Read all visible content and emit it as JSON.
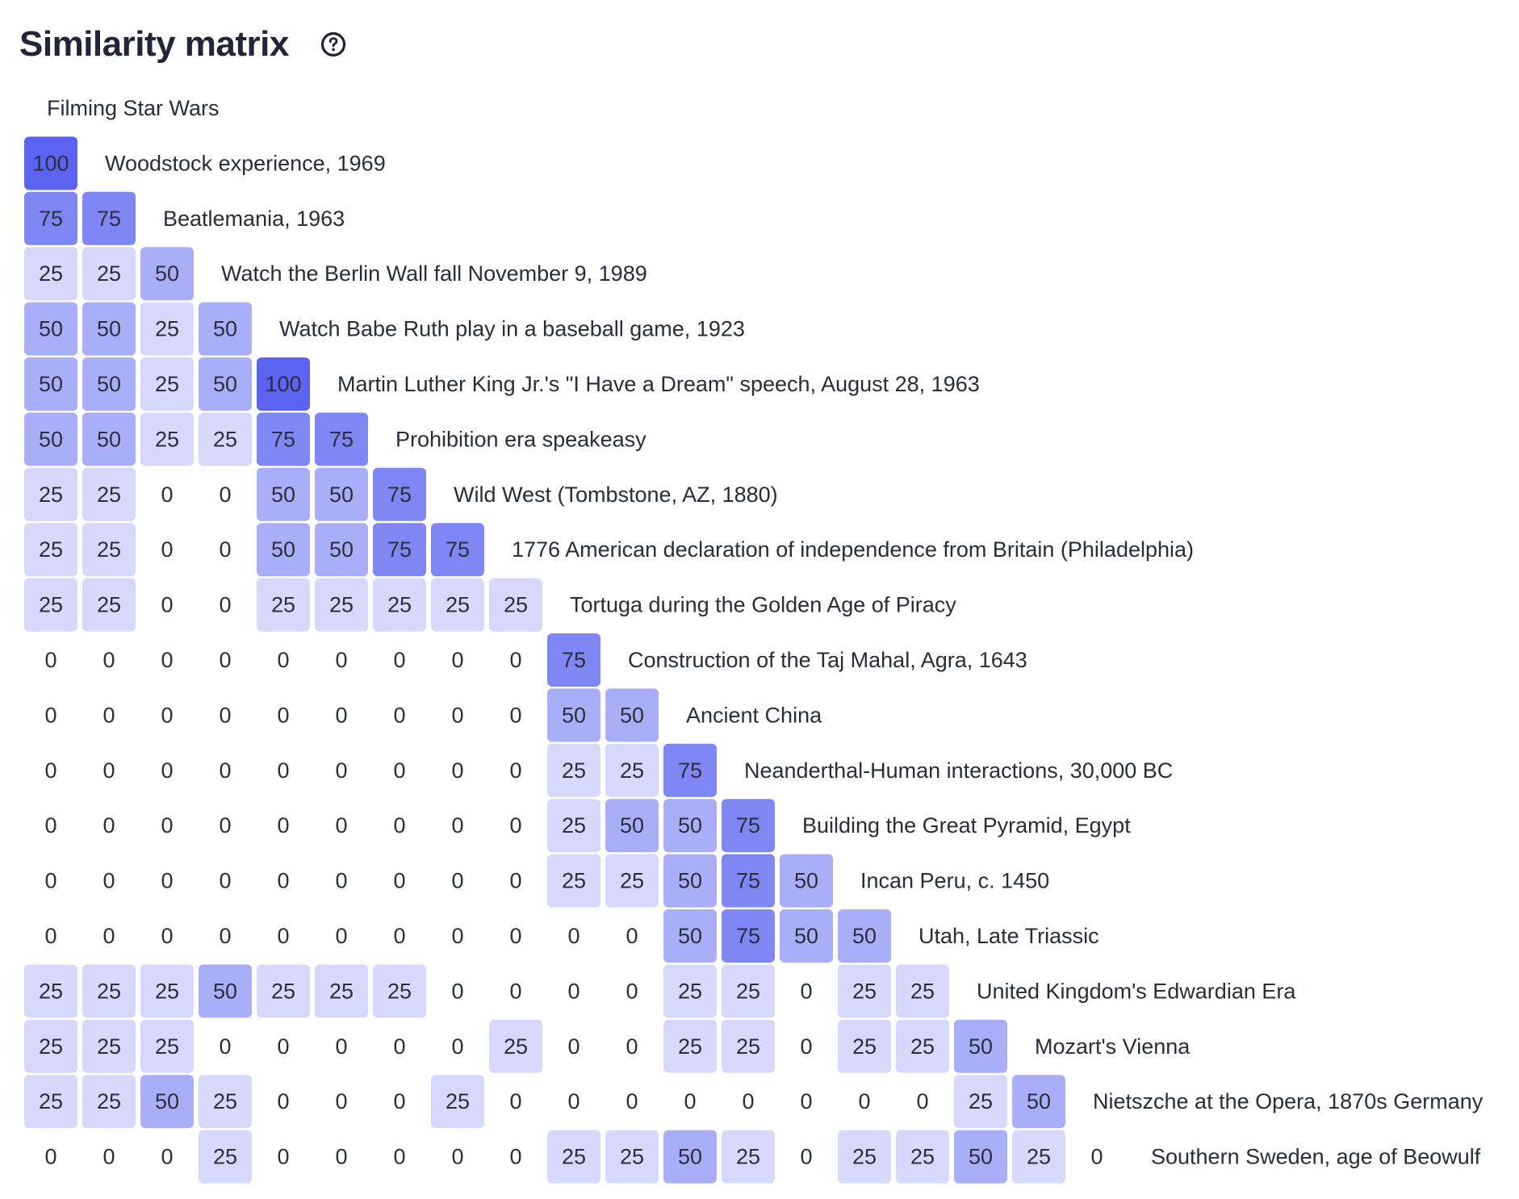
{
  "header": {
    "title": "Similarity matrix",
    "help_icon": "question-circle-icon"
  },
  "colors": {
    "level_100": "#5b63f0",
    "level_75": "#7f87f4",
    "level_50": "#a8aef7",
    "level_25": "#d6d9fb",
    "level_0": "transparent",
    "text": "#2a2c3a"
  },
  "chart_data": {
    "type": "heatmap",
    "title": "Similarity matrix",
    "xlabel": "",
    "ylabel": "",
    "value_levels": [
      0,
      25,
      50,
      75,
      100
    ],
    "labels": [
      "Filming Star Wars",
      "Woodstock experience, 1969",
      "Beatlemania, 1963",
      "Watch the Berlin Wall fall November 9, 1989",
      "Watch Babe Ruth play in a baseball game, 1923",
      "Martin Luther King Jr.'s \"I Have a Dream\" speech, August 28, 1963",
      "Prohibition era speakeasy",
      "Wild West (Tombstone, AZ, 1880)",
      "1776 American declaration of independence from Britain (Philadelphia)",
      "Tortuga during the Golden Age of Piracy",
      "Construction of the Taj Mahal, Agra, 1643",
      "Ancient China",
      "Neanderthal-Human interactions, 30,000 BC",
      "Building the Great Pyramid, Egypt",
      "Incan Peru, c. 1450",
      "Utah, Late Triassic",
      "United Kingdom's Edwardian Era",
      "Mozart's Vienna",
      "Nietszche at the Opera, 1870s Germany",
      "Southern Sweden, age of Beowulf"
    ],
    "rows": [
      [],
      [
        100
      ],
      [
        75,
        75
      ],
      [
        25,
        25,
        50
      ],
      [
        50,
        50,
        25,
        50
      ],
      [
        50,
        50,
        25,
        50,
        100
      ],
      [
        50,
        50,
        25,
        25,
        75,
        75
      ],
      [
        25,
        25,
        0,
        0,
        50,
        50,
        75
      ],
      [
        25,
        25,
        0,
        0,
        50,
        50,
        75,
        75
      ],
      [
        25,
        25,
        0,
        0,
        25,
        25,
        25,
        25,
        25
      ],
      [
        0,
        0,
        0,
        0,
        0,
        0,
        0,
        0,
        0,
        75
      ],
      [
        0,
        0,
        0,
        0,
        0,
        0,
        0,
        0,
        0,
        50,
        50
      ],
      [
        0,
        0,
        0,
        0,
        0,
        0,
        0,
        0,
        0,
        25,
        25,
        75
      ],
      [
        0,
        0,
        0,
        0,
        0,
        0,
        0,
        0,
        0,
        25,
        50,
        50,
        75
      ],
      [
        0,
        0,
        0,
        0,
        0,
        0,
        0,
        0,
        0,
        25,
        25,
        50,
        75,
        50
      ],
      [
        0,
        0,
        0,
        0,
        0,
        0,
        0,
        0,
        0,
        0,
        0,
        50,
        75,
        50,
        50
      ],
      [
        25,
        25,
        25,
        50,
        25,
        25,
        25,
        0,
        0,
        0,
        0,
        25,
        25,
        0,
        25,
        25
      ],
      [
        25,
        25,
        25,
        0,
        0,
        0,
        0,
        0,
        25,
        0,
        0,
        25,
        25,
        0,
        25,
        25,
        50
      ],
      [
        25,
        25,
        50,
        25,
        0,
        0,
        0,
        25,
        0,
        0,
        0,
        0,
        0,
        0,
        0,
        0,
        25,
        50
      ],
      [
        0,
        0,
        0,
        25,
        0,
        0,
        0,
        0,
        0,
        25,
        25,
        50,
        25,
        0,
        25,
        25,
        50,
        25,
        0
      ]
    ]
  }
}
